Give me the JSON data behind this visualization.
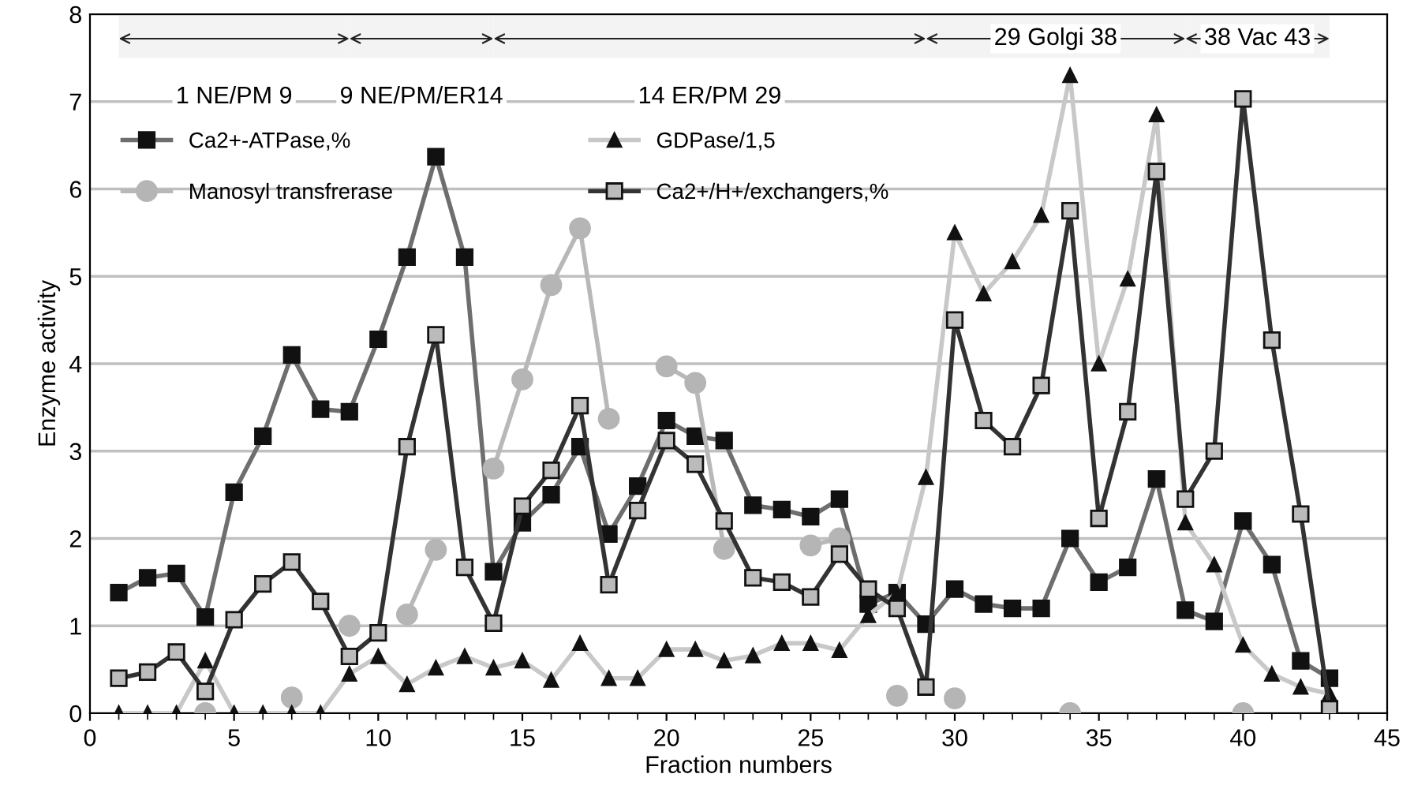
{
  "chart_data": {
    "type": "line",
    "xlabel": "Fraction numbers",
    "ylabel": "Enzyme activity",
    "x": [
      1,
      2,
      3,
      4,
      5,
      6,
      7,
      8,
      9,
      10,
      11,
      12,
      13,
      14,
      15,
      16,
      17,
      18,
      19,
      20,
      21,
      22,
      23,
      24,
      25,
      26,
      27,
      28,
      29,
      30,
      31,
      32,
      33,
      34,
      35,
      36,
      37,
      38,
      39,
      40,
      41,
      42,
      43
    ],
    "series": [
      {
        "name": "Ca2+-ATPase,%",
        "color": "#111111",
        "marker": "square",
        "values": [
          1.38,
          1.55,
          1.6,
          1.1,
          2.53,
          3.17,
          4.1,
          3.48,
          3.45,
          4.28,
          5.22,
          6.37,
          5.22,
          1.62,
          2.18,
          2.5,
          3.05,
          2.05,
          2.6,
          3.35,
          3.17,
          3.12,
          2.38,
          2.33,
          2.25,
          2.45,
          1.25,
          1.38,
          1.02,
          1.42,
          1.25,
          1.2,
          1.2,
          2.0,
          1.5,
          1.67,
          2.68,
          1.18,
          1.05,
          2.2,
          1.7,
          0.6,
          0.4
        ]
      },
      {
        "name": "Manosyl transfrerase",
        "color": "#b5b5b5",
        "marker": "circle",
        "values": [
          null,
          null,
          null,
          0,
          null,
          null,
          0.18,
          null,
          1.0,
          null,
          1.13,
          1.87,
          null,
          2.8,
          3.82,
          4.9,
          5.55,
          3.37,
          null,
          3.97,
          3.78,
          1.88,
          null,
          null,
          1.92,
          2.0,
          null,
          0.2,
          null,
          0.17,
          null,
          null,
          null,
          0,
          null,
          null,
          null,
          null,
          null,
          0,
          null,
          null,
          null
        ]
      },
      {
        "name": "GDPase/1,5",
        "color": "#111111",
        "marker": "triangle",
        "values": [
          0,
          0,
          0,
          0.6,
          0,
          0,
          0,
          0,
          0.45,
          0.65,
          0.33,
          0.52,
          0.65,
          0.52,
          0.6,
          0.38,
          0.8,
          0.4,
          0.4,
          0.73,
          0.73,
          0.6,
          0.66,
          0.8,
          0.8,
          0.72,
          1.12,
          1.38,
          2.7,
          5.5,
          4.8,
          5.17,
          5.7,
          7.3,
          4.0,
          4.97,
          6.85,
          2.18,
          1.7,
          0.78,
          0.45,
          0.3,
          0.22
        ]
      },
      {
        "name": "Ca2+/H+/exchangers,%",
        "color": "#bbbbbb",
        "marker": "square",
        "values": [
          0.4,
          0.47,
          0.7,
          0.25,
          1.07,
          1.48,
          1.73,
          1.28,
          0.65,
          0.92,
          3.05,
          4.33,
          1.67,
          1.03,
          2.37,
          2.78,
          3.52,
          1.47,
          2.32,
          3.12,
          2.85,
          2.2,
          1.55,
          1.5,
          1.33,
          1.82,
          1.42,
          1.2,
          0.3,
          4.5,
          3.35,
          3.05,
          3.75,
          5.75,
          2.23,
          3.45,
          6.2,
          2.45,
          3.0,
          7.03,
          4.27,
          2.28,
          0.05
        ]
      }
    ],
    "bands": [
      {
        "axis": "x",
        "from": 1,
        "to": 9,
        "label": "1 NE/PM 9"
      },
      {
        "axis": "x",
        "from": 9,
        "to": 14,
        "label": "9 NE/PM/ER14"
      },
      {
        "axis": "x",
        "from": 14,
        "to": 29,
        "label": "14 ER/PM 29"
      },
      {
        "axis": "x",
        "from": 29,
        "to": 38,
        "label": "29 Golgi 38"
      },
      {
        "axis": "x",
        "from": 38,
        "to": 43,
        "label": "38 Vac 43"
      }
    ],
    "xlim": [
      0,
      45
    ],
    "xticks": [
      0,
      5,
      10,
      15,
      20,
      25,
      30,
      35,
      40,
      45
    ],
    "ylim": [
      0,
      8
    ],
    "yticks": [
      0,
      1,
      2,
      3,
      4,
      5,
      6,
      7,
      8
    ],
    "grid": "y",
    "legend": "top left"
  }
}
